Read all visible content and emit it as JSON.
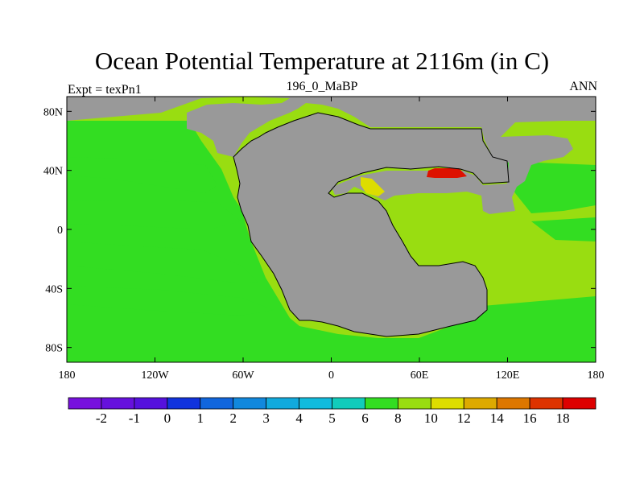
{
  "title": "Ocean Potential Temperature at 2116m (in C)",
  "left_string": "Expt = texPn1",
  "center_string": "196_0_MaBP",
  "right_string": "ANN",
  "colors": {
    "land": "#999999",
    "ocean_main": "#99dd11",
    "ocean_cool": "#33dd22",
    "warm_yellow": "#dddd00",
    "hot_red": "#dd1100"
  },
  "chart_data": {
    "type": "heatmap",
    "title": "Ocean Potential Temperature at 2116m (in C)",
    "x_ticks": [
      "180",
      "120W",
      "60W",
      "0",
      "60E",
      "120E",
      "180"
    ],
    "x_tick_values": [
      -180,
      -120,
      -60,
      0,
      60,
      120,
      180
    ],
    "y_ticks": [
      "80N",
      "40N",
      "0",
      "40S",
      "80S"
    ],
    "y_tick_values": [
      80,
      40,
      0,
      -40,
      -80
    ],
    "xlim": [
      -180,
      180
    ],
    "ylim": [
      -90,
      90
    ],
    "colorbar": {
      "labels": [
        "-2",
        "-1",
        "0",
        "1",
        "2",
        "3",
        "4",
        "5",
        "6",
        "8",
        "10",
        "12",
        "14",
        "16",
        "18"
      ],
      "colors": [
        "#7711dd",
        "#6611dd",
        "#5511dd",
        "#1133dd",
        "#1166dd",
        "#1188dd",
        "#11aadd",
        "#11bbdd",
        "#11ccbb",
        "#33dd22",
        "#99dd11",
        "#dddd00",
        "#ddaa00",
        "#dd7700",
        "#dd3300",
        "#dd0000"
      ]
    }
  }
}
